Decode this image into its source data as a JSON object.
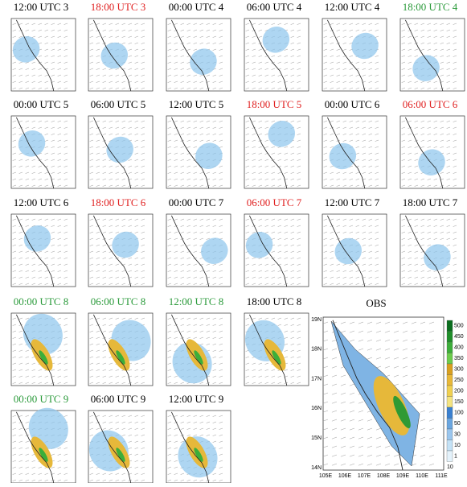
{
  "rows": [
    [
      {
        "label": "12:00 UTC 3",
        "color": "#000000"
      },
      {
        "label": "18:00 UTC 3",
        "color": "#e02020"
      },
      {
        "label": "00:00 UTC 4",
        "color": "#000000"
      },
      {
        "label": "06:00 UTC 4",
        "color": "#000000"
      },
      {
        "label": "12:00 UTC 4",
        "color": "#000000"
      },
      {
        "label": "18:00 UTC 4",
        "color": "#2a9a3a"
      }
    ],
    [
      {
        "label": "00:00 UTC 5",
        "color": "#000000"
      },
      {
        "label": "06:00 UTC 5",
        "color": "#000000"
      },
      {
        "label": "12:00 UTC 5",
        "color": "#000000"
      },
      {
        "label": "18:00 UTC 5",
        "color": "#e02020"
      },
      {
        "label": "00:00 UTC 6",
        "color": "#000000"
      },
      {
        "label": "06:00 UTC 6",
        "color": "#e02020"
      }
    ],
    [
      {
        "label": "12:00 UTC 6",
        "color": "#000000"
      },
      {
        "label": "18:00 UTC 6",
        "color": "#e02020"
      },
      {
        "label": "00:00 UTC 7",
        "color": "#000000"
      },
      {
        "label": "06:00 UTC 7",
        "color": "#e02020"
      },
      {
        "label": "12:00 UTC 7",
        "color": "#000000"
      },
      {
        "label": "18:00 UTC 7",
        "color": "#000000"
      }
    ],
    [
      {
        "label": "00:00 UTC 8",
        "color": "#2a9a3a"
      },
      {
        "label": "06:00 UTC 8",
        "color": "#2a9a3a"
      },
      {
        "label": "12:00 UTC 8",
        "color": "#2a9a3a"
      },
      {
        "label": "18:00 UTC 8",
        "color": "#000000"
      }
    ],
    [
      {
        "label": "00:00 UTC 9",
        "color": "#2a9a3a"
      },
      {
        "label": "06:00 UTC 9",
        "color": "#000000"
      },
      {
        "label": "12:00 UTC 9",
        "color": "#000000"
      }
    ]
  ],
  "obs": {
    "title": "OBS",
    "lat_labels": [
      "19N",
      "18N",
      "17N",
      "16N",
      "15N",
      "14N"
    ],
    "lon_labels": [
      "105E",
      "106E",
      "107E",
      "108E",
      "109E",
      "110E",
      "111E"
    ],
    "colorbar": {
      "labels": [
        500,
        450,
        400,
        350,
        300,
        250,
        200,
        150,
        100,
        50,
        30,
        10,
        1
      ],
      "colors": [
        "#0a6e1e",
        "#1f8f2a",
        "#3cae3a",
        "#6ccc4c",
        "#d8a020",
        "#e8b838",
        "#f0d050",
        "#f4e480",
        "#3a80d0",
        "#6aa6e0",
        "#9ac6ee",
        "#c4e2f6",
        "#e4f2fb"
      ]
    },
    "vector_label": "10"
  }
}
